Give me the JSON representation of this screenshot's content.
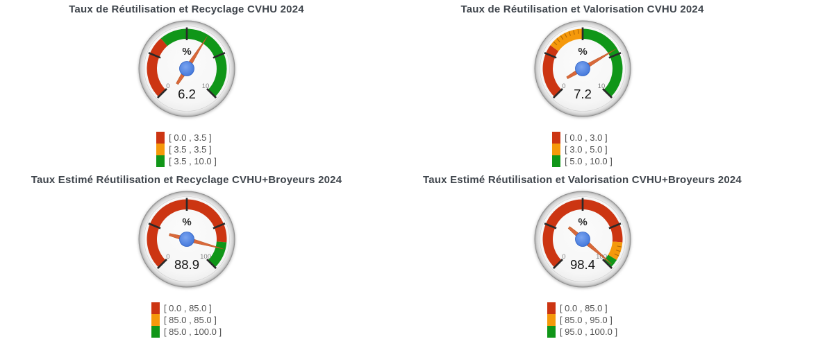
{
  "page": {
    "background": "#ffffff"
  },
  "colors": {
    "red": "#cc3512",
    "orange": "#f5990b",
    "green": "#109618",
    "needle": "#d9683a",
    "needle_edge": "#b6551f",
    "hub": "#4e86ec",
    "hub_edge": "#2f62c4",
    "title_text": "#3f454c",
    "legend_text": "#4f4f4f",
    "minmax_label": "#808080",
    "value_text": "#141414",
    "unit_text": "#2b2b2b",
    "tick_major": "#2a2a2a"
  },
  "chart_data": [
    {
      "type": "gauge",
      "title": "Taux de Réutilisation et Recyclage CVHU 2024",
      "unit": "%",
      "value": 6.2,
      "value_label": "6.2",
      "min": 0,
      "max": 10,
      "min_label": "0",
      "max_label": "10",
      "sweep_deg": 270,
      "ranges": [
        {
          "color_name": "red",
          "from": 0.0,
          "to": 3.5,
          "label": "[ 0.0 , 3.5 ]"
        },
        {
          "color_name": "orange",
          "from": 3.5,
          "to": 3.5,
          "label": "[ 3.5 , 3.5 ]"
        },
        {
          "color_name": "green",
          "from": 3.5,
          "to": 10.0,
          "label": "[ 3.5 , 10.0 ]"
        }
      ]
    },
    {
      "type": "gauge",
      "title": "Taux de Réutilisation et Valorisation CVHU 2024",
      "unit": "%",
      "value": 7.2,
      "value_label": "7.2",
      "min": 0,
      "max": 10,
      "min_label": "0",
      "max_label": "10",
      "sweep_deg": 270,
      "ranges": [
        {
          "color_name": "red",
          "from": 0.0,
          "to": 3.0,
          "label": "[ 0.0 , 3.0 ]"
        },
        {
          "color_name": "orange",
          "from": 3.0,
          "to": 5.0,
          "label": "[ 3.0 , 5.0 ]"
        },
        {
          "color_name": "green",
          "from": 5.0,
          "to": 10.0,
          "label": "[ 5.0 , 10.0 ]"
        }
      ]
    },
    {
      "type": "gauge",
      "title": "Taux Estimé Réutilisation et Recyclage CVHU+Broyeurs 2024",
      "unit": "%",
      "value": 88.9,
      "value_label": "88.9",
      "min": 0,
      "max": 100,
      "min_label": "0",
      "max_label": "100",
      "sweep_deg": 270,
      "ranges": [
        {
          "color_name": "red",
          "from": 0.0,
          "to": 85.0,
          "label": "[ 0.0 , 85.0 ]"
        },
        {
          "color_name": "orange",
          "from": 85.0,
          "to": 85.0,
          "label": "[ 85.0 , 85.0 ]"
        },
        {
          "color_name": "green",
          "from": 85.0,
          "to": 100.0,
          "label": "[ 85.0 , 100.0 ]"
        }
      ]
    },
    {
      "type": "gauge",
      "title": "Taux Estimé Réutilisation et Valorisation CVHU+Broyeurs 2024",
      "unit": "%",
      "value": 98.4,
      "value_label": "98.4",
      "min": 0,
      "max": 100,
      "min_label": "0",
      "max_label": "100",
      "sweep_deg": 270,
      "ranges": [
        {
          "color_name": "red",
          "from": 0.0,
          "to": 85.0,
          "label": "[ 0.0 , 85.0 ]"
        },
        {
          "color_name": "orange",
          "from": 85.0,
          "to": 95.0,
          "label": "[ 85.0 , 95.0 ]"
        },
        {
          "color_name": "green",
          "from": 95.0,
          "to": 100.0,
          "label": "[ 95.0 , 100.0 ]"
        }
      ]
    }
  ]
}
